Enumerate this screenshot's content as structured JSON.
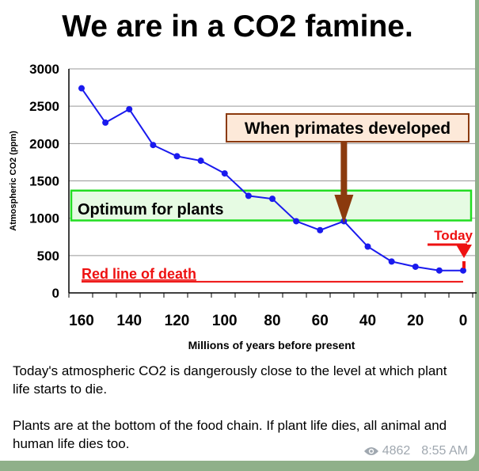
{
  "chart_data": {
    "type": "line",
    "title": "We are in a CO2 famine.",
    "xlabel": "Millions of years before present",
    "ylabel": "Atmospheric CO2 (ppm)",
    "x": [
      160,
      150,
      140,
      130,
      120,
      110,
      100,
      90,
      80,
      70,
      60,
      50,
      40,
      30,
      20,
      10,
      0
    ],
    "values": [
      2740,
      2280,
      2460,
      1980,
      1830,
      1770,
      1600,
      1300,
      1260,
      960,
      840,
      960,
      620,
      420,
      350,
      300,
      300
    ],
    "xlim": [
      160,
      0
    ],
    "ylim": [
      0,
      3000
    ],
    "xticks": [
      160,
      140,
      120,
      100,
      80,
      60,
      40,
      20,
      0
    ],
    "yticks": [
      0,
      500,
      1000,
      1500,
      2000,
      2500,
      3000
    ],
    "grid": true,
    "annotations": {
      "optimum": {
        "label": "Optimum for plants",
        "range": [
          970,
          1370
        ]
      },
      "primates": {
        "label": "When primates developed",
        "x": 50
      },
      "death": {
        "label": "Red line of death",
        "y": 150
      },
      "today": {
        "label": "Today",
        "x": 0
      }
    },
    "colors": {
      "line": "#1a1aee",
      "optimum": "#22dd22",
      "death": "#ee1111",
      "primates": "#8b3a0e"
    }
  },
  "post": {
    "paragraphs": [
      "Today's atmospheric CO2 is dangerously close to the level at which plant life starts to die.",
      "Plants are at the bottom of the food chain. If plant life dies, all animal and human life dies too."
    ],
    "views": "4862",
    "time": "8:55 AM"
  }
}
